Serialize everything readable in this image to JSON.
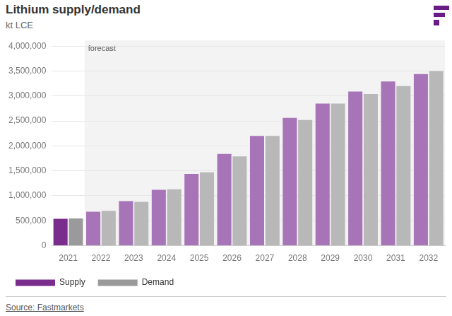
{
  "chart_data": {
    "type": "bar",
    "title": "Lithium supply/demand",
    "subtitle": "kt LCE",
    "source": "Source: Fastmarkets",
    "annotations": [
      {
        "text": "forecast",
        "start": "2022"
      }
    ],
    "categories": [
      "2021",
      "2022",
      "2023",
      "2024",
      "2025",
      "2026",
      "2027",
      "2028",
      "2029",
      "2030",
      "2031",
      "2032"
    ],
    "series": [
      {
        "name": "Supply",
        "color": "#7b2d8e",
        "colors": [
          "#7b2d8e",
          "#a774b8",
          "#a774b8",
          "#a774b8",
          "#a774b8",
          "#a774b8",
          "#a774b8",
          "#a774b8",
          "#a774b8",
          "#a774b8",
          "#a774b8",
          "#a774b8"
        ],
        "values": [
          540000,
          680000,
          895000,
          1120000,
          1440000,
          1840000,
          2200000,
          2560000,
          2850000,
          3090000,
          3290000,
          3440000
        ]
      },
      {
        "name": "Demand",
        "color": "#9a9a9a",
        "colors": [
          "#9a9a9a",
          "#b8b8b8",
          "#b8b8b8",
          "#b8b8b8",
          "#b8b8b8",
          "#b8b8b8",
          "#b8b8b8",
          "#b8b8b8",
          "#b8b8b8",
          "#b8b8b8",
          "#b8b8b8",
          "#b8b8b8"
        ],
        "values": [
          545000,
          700000,
          880000,
          1130000,
          1470000,
          1790000,
          2200000,
          2520000,
          2850000,
          3040000,
          3200000,
          3500000
        ]
      }
    ],
    "ylim": [
      0,
      4000000
    ],
    "yticks": [
      0,
      {
        "value": 500000,
        "label": "500,000"
      },
      {
        "value": 1000000,
        "label": "1,000,000"
      },
      {
        "value": 1500000,
        "label": "1,500,000"
      },
      {
        "value": 2000000,
        "label": "2,000,000"
      },
      {
        "value": 2500000,
        "label": "2,500,000"
      },
      {
        "value": 3000000,
        "label": "3,000,000"
      },
      {
        "value": 3500000,
        "label": "3,500,000"
      },
      {
        "value": 4000000,
        "label": "4,000,000"
      }
    ],
    "grid": true,
    "legend": "bottom-left"
  }
}
